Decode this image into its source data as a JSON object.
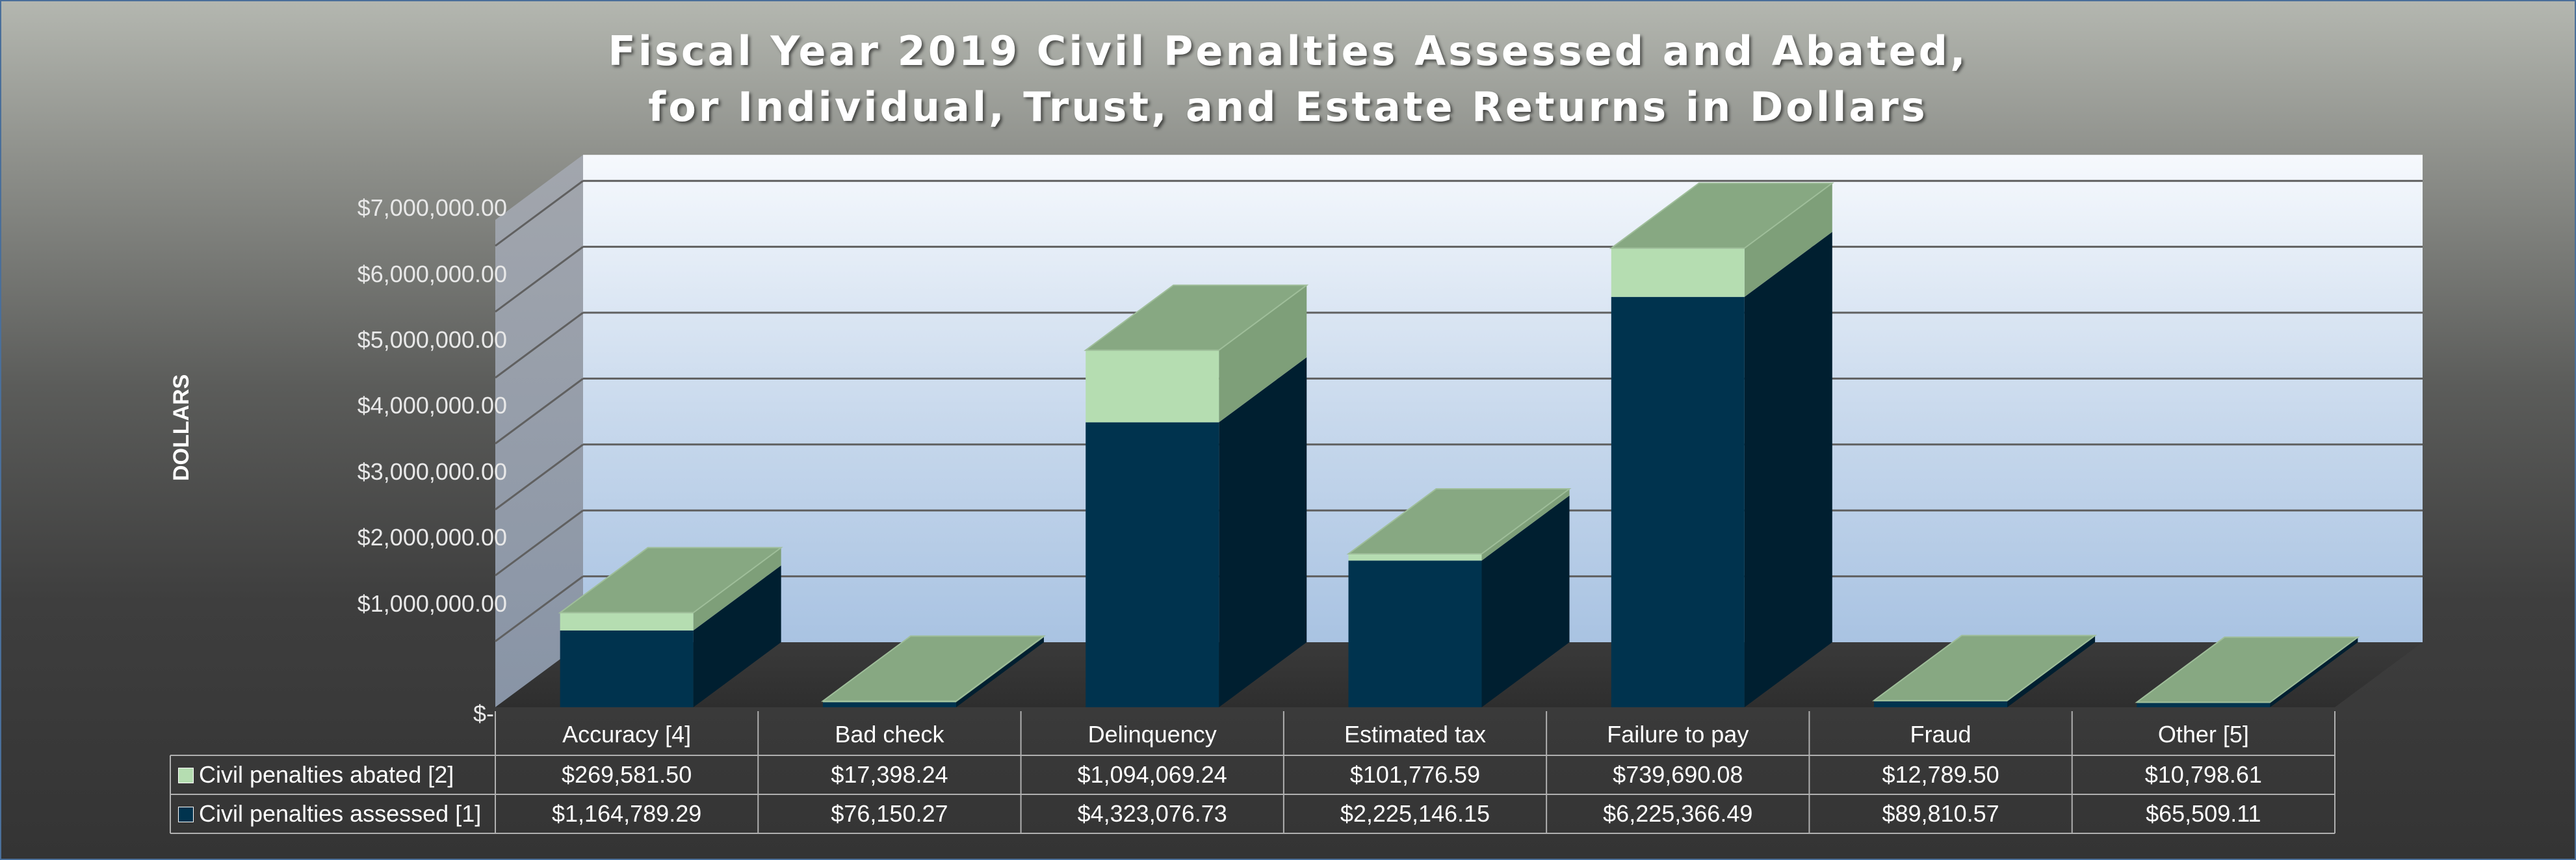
{
  "chart_data": {
    "type": "bar",
    "title_lines": [
      "Fiscal Year 2019 Civil Penalties Assessed and Abated,",
      "for Individual, Trust, and Estate Returns in Dollars"
    ],
    "ylabel": "DOLLARS",
    "ylim": [
      0,
      7000000
    ],
    "ytick_labels": [
      "$-",
      "$1,000,000.00",
      "$2,000,000.00",
      "$3,000,000.00",
      "$4,000,000.00",
      "$5,000,000.00",
      "$6,000,000.00",
      "$7,000,000.00"
    ],
    "ytick_values": [
      0,
      1000000,
      2000000,
      3000000,
      4000000,
      5000000,
      6000000,
      7000000
    ],
    "stacked": true,
    "style": "3d-column",
    "grid": true,
    "legend": "data-table",
    "categories": [
      "Accuracy [4]",
      "Bad check",
      "Delinquency",
      "Estimated tax",
      "Failure to pay",
      "Fraud",
      "Other [5]"
    ],
    "series": [
      {
        "name": "Civil penalties assessed [1]",
        "values": [
          1164789.29,
          76150.27,
          4323076.73,
          2225146.15,
          6225366.49,
          89810.57,
          65509.11
        ],
        "labels": [
          "$1,164,789.29",
          "$76,150.27",
          "$4,323,076.73",
          "$2,225,146.15",
          "$6,225,366.49",
          "$89,810.57",
          "$65,509.11"
        ],
        "color": "#00334e"
      },
      {
        "name": "Civil penalties abated [2]",
        "values": [
          269581.5,
          17398.24,
          1094069.24,
          101776.59,
          739690.08,
          12789.5,
          10798.61
        ],
        "labels": [
          "$269,581.50",
          "$17,398.24",
          "$1,094,069.24",
          "$101,776.59",
          "$739,690.08",
          "$12,789.50",
          "$10,798.61"
        ],
        "color": "#b5ddb1"
      }
    ]
  },
  "colors": {
    "assessed_front": "#00334e",
    "assessed_side": "#001f30",
    "abated_front": "#b5ddb1",
    "abated_side": "#7e9f79",
    "top_face": "#87a882",
    "grid": "#606060",
    "table_line": "#b0b0b0"
  }
}
